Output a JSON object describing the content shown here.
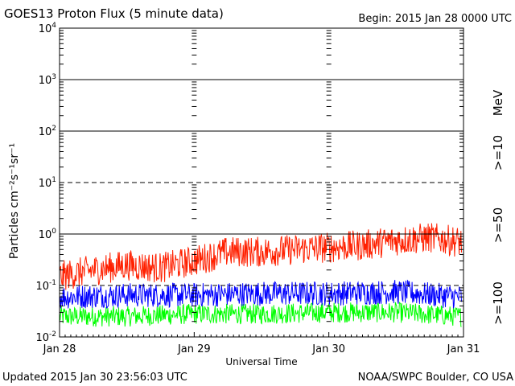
{
  "chart_data": {
    "type": "line",
    "title": "GOES13 Proton Flux (5 minute data)",
    "begin_label": "Begin: 2015 Jan 28 0000 UTC",
    "xlabel": "Universal Time",
    "ylabel": "Particles cm⁻²s⁻¹sr⁻¹",
    "y_scale": "log",
    "ylim": [
      0.01,
      10000
    ],
    "y_ticks": [
      {
        "base": "10",
        "exp": "4"
      },
      {
        "base": "10",
        "exp": "3"
      },
      {
        "base": "10",
        "exp": "2"
      },
      {
        "base": "10",
        "exp": "1"
      },
      {
        "base": "10",
        "exp": "0"
      },
      {
        "base": "10",
        "exp": "-1"
      },
      {
        "base": "10",
        "exp": "-2"
      }
    ],
    "x_range_days": [
      0,
      3
    ],
    "x_ticks": [
      "Jan 28",
      "Jan 29",
      "Jan 30",
      "Jan 31"
    ],
    "unit_label": "MeV",
    "series": [
      {
        "name": ">=10",
        "color": "#ff2000",
        "x_days": [
          0,
          0.25,
          0.5,
          0.75,
          1.0,
          1.25,
          1.5,
          1.75,
          2.0,
          2.25,
          2.5,
          2.75,
          2.98
        ],
        "values": [
          0.15,
          0.2,
          0.25,
          0.22,
          0.3,
          0.45,
          0.45,
          0.5,
          0.55,
          0.6,
          0.75,
          0.85,
          0.7
        ]
      },
      {
        "name": ">=50",
        "color": "#0000ff",
        "x_days": [
          0,
          0.5,
          1.0,
          1.5,
          2.0,
          2.5,
          2.98
        ],
        "values": [
          0.06,
          0.065,
          0.065,
          0.07,
          0.07,
          0.075,
          0.06
        ]
      },
      {
        "name": ">=100",
        "color": "#00ff00",
        "x_days": [
          0,
          0.5,
          1.0,
          1.5,
          2.0,
          2.5,
          2.98
        ],
        "values": [
          0.025,
          0.025,
          0.028,
          0.028,
          0.03,
          0.03,
          0.025
        ]
      }
    ]
  },
  "footer": {
    "updated": "Updated 2015 Jan 30 23:56:03 UTC",
    "credit": "NOAA/SWPC Boulder, CO USA"
  }
}
